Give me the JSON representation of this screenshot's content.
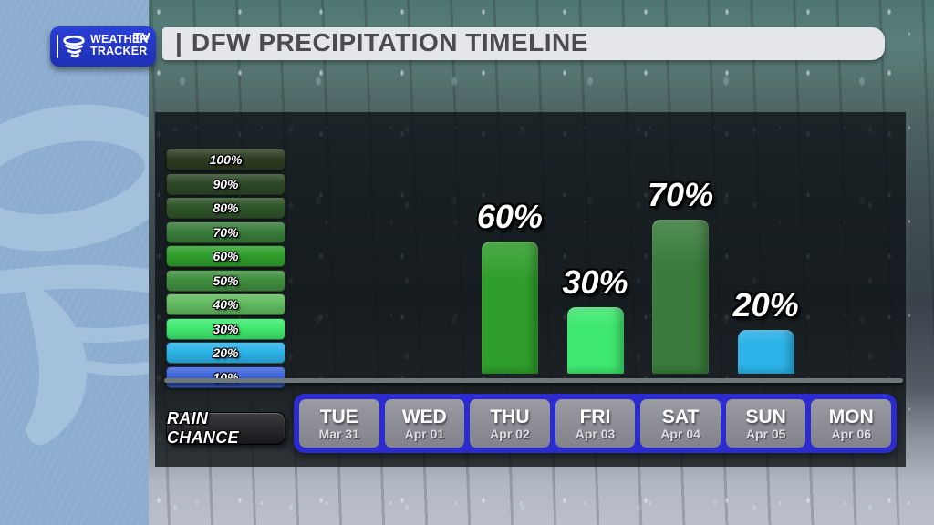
{
  "header": {
    "logo": {
      "line1": "WEATHER",
      "line2": "TRACKER",
      "tv": "TV"
    },
    "title_divider": "|",
    "title": "DFW PRECIPITATION TIMELINE"
  },
  "legend": {
    "items": [
      {
        "label": "100%",
        "color": "#2c3b21"
      },
      {
        "label": "90%",
        "color": "#2d4827"
      },
      {
        "label": "80%",
        "color": "#2f5429"
      },
      {
        "label": "70%",
        "color": "#397c3b"
      },
      {
        "label": "60%",
        "color": "#2f9e2b"
      },
      {
        "label": "50%",
        "color": "#3f8f3e"
      },
      {
        "label": "40%",
        "color": "#61b95f"
      },
      {
        "label": "30%",
        "color": "#3fe86f"
      },
      {
        "label": "20%",
        "color": "#2cb3e8"
      },
      {
        "label": "10%",
        "color": "#3c64da"
      }
    ]
  },
  "chart_data": {
    "type": "bar",
    "title": "DFW PRECIPITATION TIMELINE",
    "categories": [
      "TUE",
      "WED",
      "THU",
      "FRI",
      "SAT",
      "SUN",
      "MON"
    ],
    "dates": [
      "Mar 31",
      "Apr 01",
      "Apr 02",
      "Apr 03",
      "Apr 04",
      "Apr 05",
      "Apr 06"
    ],
    "series": [
      {
        "name": "Rain Chance",
        "values": [
          null,
          null,
          60,
          30,
          70,
          20,
          null
        ]
      }
    ],
    "bar_colors": [
      null,
      null,
      "#2f9e2b",
      "#3fe86f",
      "#397c3b",
      "#2cb3e8",
      null
    ],
    "value_suffix": "%",
    "ylim": [
      0,
      100
    ],
    "axis_label": "RAIN CHANCE",
    "legend_position": "left",
    "grid": false
  }
}
